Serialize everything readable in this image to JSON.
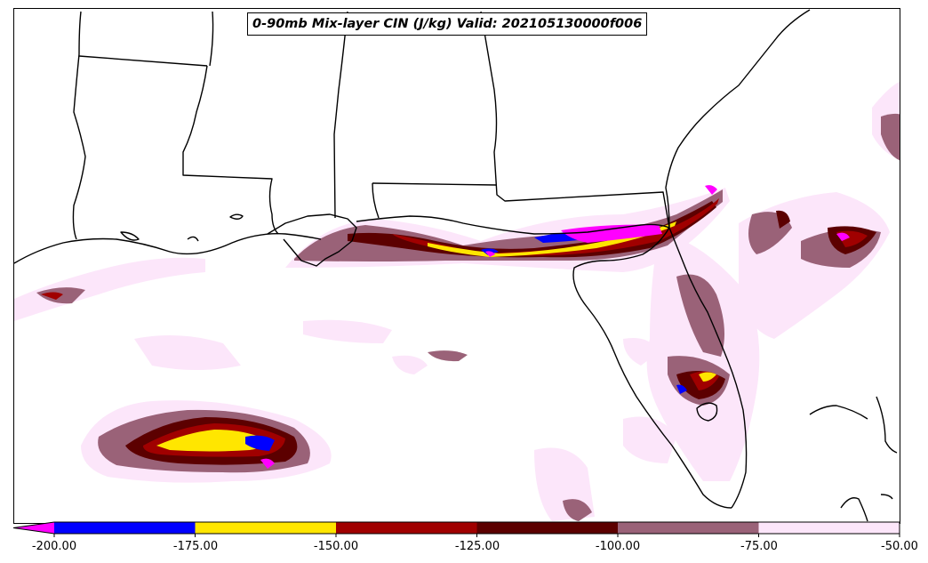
{
  "title": "0-90mb Mix-layer CIN (J/kg) Valid: 202105130000f006",
  "legend": {
    "ticks": [
      "-200.00",
      "-175.00",
      "-150.00",
      "-125.00",
      "-100.00",
      "-75.00",
      "-50.00"
    ],
    "bins": [
      {
        "range": [
          -225,
          -200
        ],
        "color": "#ff00ff"
      },
      {
        "range": [
          -200,
          -175
        ],
        "color": "#0000ff"
      },
      {
        "range": [
          -175,
          -150
        ],
        "color": "#ffe600"
      },
      {
        "range": [
          -150,
          -125
        ],
        "color": "#a00000"
      },
      {
        "range": [
          -125,
          -100
        ],
        "color": "#5c0000"
      },
      {
        "range": [
          -100,
          -75
        ],
        "color": "#9a6278"
      },
      {
        "range": [
          -75,
          -50
        ],
        "color": "#fce6fa"
      }
    ]
  },
  "colors": {
    "border": "#000000",
    "background": "#ffffff"
  }
}
